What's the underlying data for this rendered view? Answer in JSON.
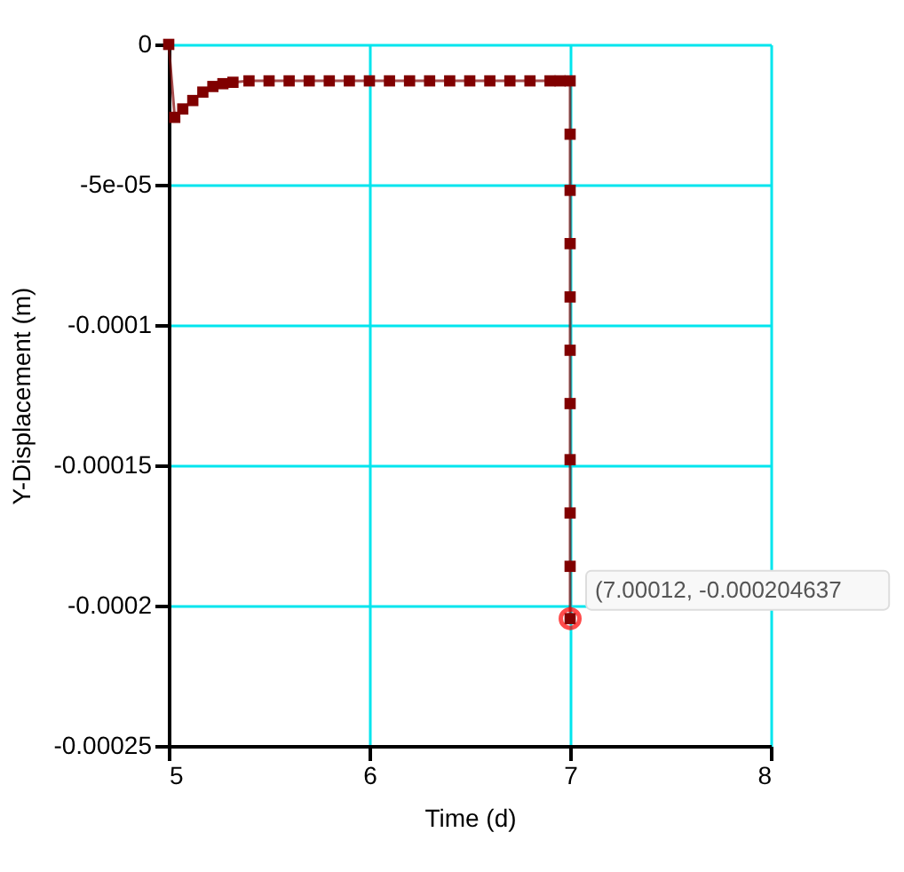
{
  "chart_data": {
    "type": "line",
    "xlabel": "Time (d)",
    "ylabel": "Y-Displacement (m)",
    "series": [
      {
        "color": "#800000",
        "marker": "square",
        "line_style": "solid",
        "x": [
          5.0,
          5.03,
          5.07,
          5.12,
          5.17,
          5.22,
          5.27,
          5.32,
          5.4,
          5.5,
          5.6,
          5.7,
          5.8,
          5.9,
          6.0,
          6.1,
          6.2,
          6.3,
          6.4,
          6.5,
          6.6,
          6.7,
          6.8,
          6.9,
          6.95,
          7.0,
          7.0,
          7.0,
          7.0,
          7.0,
          7.0,
          7.0,
          7.0,
          7.0,
          7.0,
          7.00012
        ],
        "values": [
          0,
          -2.6e-05,
          -2.3e-05,
          -2e-05,
          -1.7e-05,
          -1.5e-05,
          -1.4e-05,
          -1.35e-05,
          -1.3e-05,
          -1.3e-05,
          -1.3e-05,
          -1.3e-05,
          -1.3e-05,
          -1.3e-05,
          -1.3e-05,
          -1.3e-05,
          -1.3e-05,
          -1.3e-05,
          -1.3e-05,
          -1.3e-05,
          -1.3e-05,
          -1.3e-05,
          -1.3e-05,
          -1.3e-05,
          -1.3e-05,
          -1.3e-05,
          -3.2e-05,
          -5.2e-05,
          -7.1e-05,
          -9e-05,
          -0.000109,
          -0.000128,
          -0.000148,
          -0.000167,
          -0.000186,
          -0.000204637
        ]
      }
    ],
    "xlim": [
      5,
      8
    ],
    "xticks": [
      5,
      6,
      7,
      8
    ],
    "ylim": [
      -0.00025,
      0
    ],
    "yticks": [
      0,
      {
        "value": -5e-05,
        "label": "-5e-05"
      },
      -0.0001,
      -0.00015,
      -0.0002,
      -0.00025
    ],
    "grid": true,
    "annotations": [
      {
        "text": "(7.00012, -0.000204637",
        "x": 7.00012,
        "y": -0.000204637
      }
    ]
  }
}
